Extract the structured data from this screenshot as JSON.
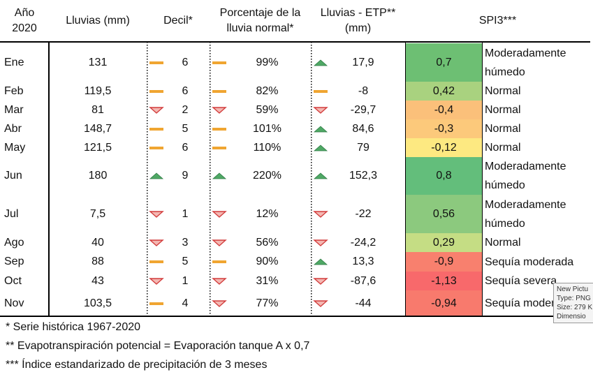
{
  "table": {
    "columns": [
      [
        "Año",
        "2020"
      ],
      [
        "Lluvias (mm)"
      ],
      [
        "Decil*"
      ],
      [
        "Porcentaje de la",
        "lluvia normal*"
      ],
      [
        "Lluvias - ETP**",
        "(mm)"
      ],
      [
        "SPI3***"
      ]
    ],
    "rows": [
      [
        "Ene",
        "131",
        "6",
        "99%",
        "17,9",
        "0,7",
        "Moderadamente húmedo"
      ],
      [
        "Feb",
        "119,5",
        "6",
        "82%",
        "-8",
        "0,42",
        "Normal"
      ],
      [
        "Mar",
        "81",
        "2",
        "59%",
        "-29,7",
        "-0,4",
        "Normal"
      ],
      [
        "Abr",
        "148,7",
        "5",
        "101%",
        "84,6",
        "-0,3",
        "Normal"
      ],
      [
        "May",
        "121,5",
        "6",
        "110%",
        "79",
        "-0,12",
        "Normal"
      ],
      [
        "Jun",
        "180",
        "9",
        "220%",
        "152,3",
        "0,8",
        "Moderadamente húmedo"
      ],
      [
        "Jul",
        "7,5",
        "1",
        "12%",
        "-22",
        "0,56",
        "Moderadamente húmedo"
      ],
      [
        "Ago",
        "40",
        "3",
        "56%",
        "-24,2",
        "0,29",
        "Normal"
      ],
      [
        "Sep",
        "88",
        "5",
        "90%",
        "13,3",
        "-0,9",
        "Sequía moderada"
      ],
      [
        "Oct",
        "43",
        "1",
        "31%",
        "-87,6",
        "-1,13",
        "Sequía severa"
      ],
      [
        "Nov",
        "103,5",
        "4",
        "77%",
        "-44",
        "-0,94",
        "Sequía moderada"
      ]
    ]
  },
  "footnotes": [
    "* Serie histórica 1967-2020",
    "** Evapotranspiración potencial = Evaporación tanque A x 0,7",
    "*** Índice estandarizado de precipitación de 3 meses"
  ],
  "tooltip": [
    "New Pictu",
    "Type: PNG",
    "Size: 279 K",
    "Dimensio"
  ]
}
